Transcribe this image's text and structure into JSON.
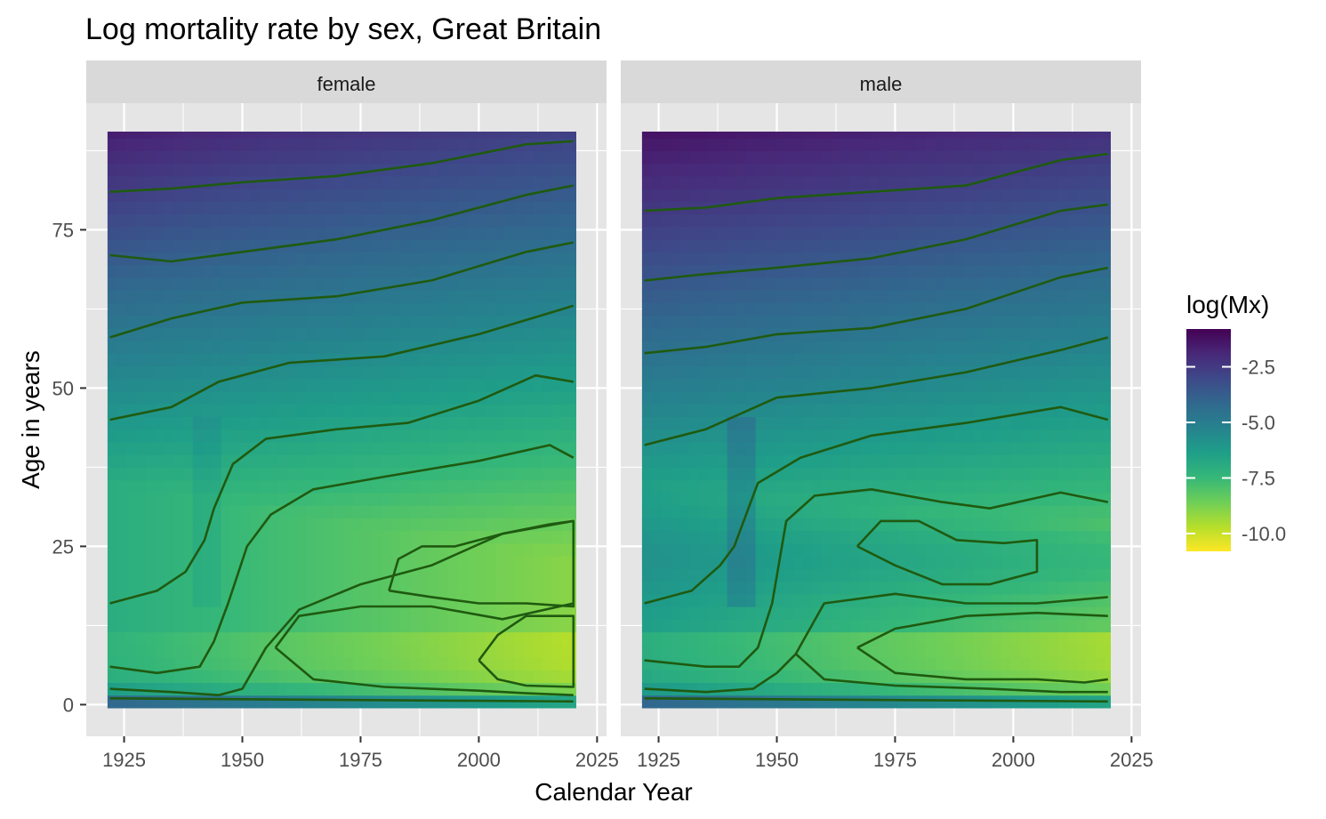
{
  "chart_data": {
    "type": "heatmap",
    "title": "Log mortality rate by sex, Great Britain",
    "xlabel": "Calendar Year",
    "ylabel": "Age in years",
    "xlim": [
      1917,
      2027
    ],
    "ylim": [
      -5,
      95
    ],
    "data_x_range": [
      1922,
      2020
    ],
    "data_y_range": [
      0,
      90
    ],
    "x_ticks": [
      1925,
      1950,
      1975,
      2000,
      2025
    ],
    "y_ticks": [
      0,
      25,
      50,
      75
    ],
    "panel_bg": "#e5e5e5",
    "strip_bg": "#d9d9d9",
    "contour_color": "#1f5a10",
    "legend": {
      "title": "log(Mx)",
      "range": [
        -10.8,
        -0.8
      ],
      "ticks": [
        -2.5,
        -5.0,
        -7.5,
        -10.0
      ],
      "tick_labels": [
        "-2.5",
        "-5.0",
        "-7.5",
        "-10.0"
      ],
      "palette": [
        "#fde725",
        "#b5de2b",
        "#6ece58",
        "#35b779",
        "#1f9e89",
        "#26828e",
        "#31688e",
        "#3e4989",
        "#482878",
        "#440154"
      ]
    },
    "panels": [
      {
        "label": "female",
        "contours": [
          {
            "level": "c1",
            "points": [
              [
                1922,
                81
              ],
              [
                1935,
                81.5
              ],
              [
                1950,
                82.5
              ],
              [
                1970,
                83.5
              ],
              [
                1990,
                85.5
              ],
              [
                2010,
                88.5
              ],
              [
                2020,
                89
              ]
            ]
          },
          {
            "level": "c2",
            "points": [
              [
                1922,
                71
              ],
              [
                1935,
                70
              ],
              [
                1950,
                71.5
              ],
              [
                1970,
                73.5
              ],
              [
                1990,
                76.5
              ],
              [
                2010,
                80.5
              ],
              [
                2020,
                82
              ]
            ]
          },
          {
            "level": "c3",
            "points": [
              [
                1922,
                58
              ],
              [
                1935,
                61
              ],
              [
                1950,
                63.5
              ],
              [
                1970,
                64.5
              ],
              [
                1990,
                67
              ],
              [
                2010,
                71.5
              ],
              [
                2020,
                73
              ]
            ]
          },
          {
            "level": "c4",
            "points": [
              [
                1922,
                45
              ],
              [
                1935,
                47
              ],
              [
                1945,
                51
              ],
              [
                1960,
                54
              ],
              [
                1980,
                55
              ],
              [
                2000,
                58.5
              ],
              [
                2020,
                63
              ]
            ]
          },
          {
            "level": "c5",
            "points": [
              [
                1922,
                16
              ],
              [
                1932,
                18
              ],
              [
                1938,
                21
              ],
              [
                1942,
                26
              ],
              [
                1944,
                31
              ],
              [
                1948,
                38
              ],
              [
                1955,
                42
              ],
              [
                1970,
                43.5
              ],
              [
                1985,
                44.5
              ],
              [
                2000,
                48
              ],
              [
                2012,
                52
              ],
              [
                2020,
                51
              ]
            ]
          },
          {
            "level": "c6",
            "points": [
              [
                1922,
                6
              ],
              [
                1932,
                5
              ],
              [
                1941,
                6
              ],
              [
                1944,
                10
              ],
              [
                1947,
                16
              ],
              [
                1951,
                25
              ],
              [
                1956,
                30
              ],
              [
                1965,
                34
              ],
              [
                1980,
                36
              ],
              [
                2000,
                38.5
              ],
              [
                2015,
                41
              ],
              [
                2020,
                39
              ]
            ]
          },
          {
            "level": "c7",
            "points": [
              [
                1922,
                2.5
              ],
              [
                1935,
                2
              ],
              [
                1945,
                1.5
              ],
              [
                1950,
                2.5
              ],
              [
                1955,
                9
              ],
              [
                1962,
                15
              ],
              [
                1975,
                19
              ],
              [
                1990,
                22
              ],
              [
                2005,
                27
              ],
              [
                2020,
                29
              ]
            ]
          },
          {
            "level": "c8",
            "points": [
              [
                1922,
                1
              ],
              [
                1960,
                0.8
              ],
              [
                2000,
                0.6
              ],
              [
                2020,
                0.5
              ]
            ]
          },
          {
            "level": "c9",
            "points": [
              [
                1957,
                9
              ],
              [
                1965,
                4
              ],
              [
                1980,
                2.8
              ],
              [
                2000,
                2.2
              ],
              [
                2010,
                1.8
              ],
              [
                2020,
                1.5
              ]
            ]
          },
          {
            "level": "c10",
            "points": [
              [
                1957,
                9
              ],
              [
                1962,
                14
              ],
              [
                1975,
                15.5
              ],
              [
                1990,
                15.5
              ],
              [
                2005,
                13.5
              ],
              [
                2020,
                16
              ]
            ]
          },
          {
            "level": "c11",
            "points": [
              [
                2000,
                7
              ],
              [
                2004,
                4
              ],
              [
                2010,
                3
              ],
              [
                2020,
                2.8
              ],
              [
                2020,
                14
              ],
              [
                2010,
                14
              ],
              [
                2004,
                11
              ],
              [
                2000,
                7
              ]
            ]
          },
          {
            "level": "c12",
            "points": [
              [
                1981,
                18
              ],
              [
                1983,
                23
              ],
              [
                1988,
                25
              ],
              [
                1995,
                25
              ],
              [
                2005,
                27
              ],
              [
                2015,
                28.5
              ],
              [
                2020,
                29
              ],
              [
                2020,
                15.5
              ],
              [
                2010,
                16
              ],
              [
                2000,
                16
              ],
              [
                1990,
                17
              ],
              [
                1981,
                18
              ]
            ]
          }
        ]
      },
      {
        "label": "male",
        "contours": [
          {
            "level": "c1",
            "points": [
              [
                1922,
                78
              ],
              [
                1935,
                78.5
              ],
              [
                1950,
                80
              ],
              [
                1970,
                81
              ],
              [
                1990,
                82
              ],
              [
                2010,
                86
              ],
              [
                2020,
                87
              ]
            ]
          },
          {
            "level": "c2",
            "points": [
              [
                1922,
                67
              ],
              [
                1935,
                68
              ],
              [
                1950,
                69
              ],
              [
                1970,
                70.5
              ],
              [
                1990,
                73.5
              ],
              [
                2010,
                78
              ],
              [
                2020,
                79
              ]
            ]
          },
          {
            "level": "c3",
            "points": [
              [
                1922,
                55.5
              ],
              [
                1935,
                56.5
              ],
              [
                1950,
                58.5
              ],
              [
                1970,
                59.5
              ],
              [
                1990,
                62.5
              ],
              [
                2010,
                67.5
              ],
              [
                2020,
                69
              ]
            ]
          },
          {
            "level": "c4",
            "points": [
              [
                1922,
                41
              ],
              [
                1935,
                43.5
              ],
              [
                1950,
                48.5
              ],
              [
                1970,
                50
              ],
              [
                1990,
                52.5
              ],
              [
                2010,
                56
              ],
              [
                2020,
                58
              ]
            ]
          },
          {
            "level": "c5",
            "points": [
              [
                1922,
                16
              ],
              [
                1932,
                18
              ],
              [
                1938,
                22
              ],
              [
                1941,
                25
              ],
              [
                1946,
                35
              ],
              [
                1955,
                39
              ],
              [
                1970,
                42.5
              ],
              [
                1990,
                44.5
              ],
              [
                2010,
                47
              ],
              [
                2020,
                45
              ]
            ]
          },
          {
            "level": "c6",
            "points": [
              [
                1922,
                7
              ],
              [
                1935,
                6
              ],
              [
                1942,
                6
              ],
              [
                1946,
                9
              ],
              [
                1949,
                16
              ],
              [
                1952,
                29
              ],
              [
                1958,
                33
              ],
              [
                1970,
                34
              ],
              [
                1985,
                32
              ],
              [
                1995,
                31
              ],
              [
                2010,
                33.5
              ],
              [
                2020,
                32
              ]
            ]
          },
          {
            "level": "c7",
            "points": [
              [
                1922,
                2.5
              ],
              [
                1935,
                2
              ],
              [
                1945,
                2.5
              ],
              [
                1950,
                5
              ],
              [
                1954,
                8
              ],
              [
                1960,
                16
              ],
              [
                1975,
                17.5
              ],
              [
                1990,
                16
              ],
              [
                2005,
                16
              ],
              [
                2020,
                17
              ]
            ]
          },
          {
            "level": "c8",
            "points": [
              [
                1922,
                1
              ],
              [
                1960,
                0.8
              ],
              [
                2000,
                0.6
              ],
              [
                2020,
                0.5
              ]
            ]
          },
          {
            "level": "c9",
            "points": [
              [
                1954,
                8
              ],
              [
                1960,
                4
              ],
              [
                1975,
                3
              ],
              [
                1995,
                2.5
              ],
              [
                2010,
                2
              ],
              [
                2020,
                2
              ]
            ]
          },
          {
            "level": "c10",
            "points": [
              [
                1967,
                9
              ],
              [
                1975,
                12
              ],
              [
                1990,
                14
              ],
              [
                2005,
                14.5
              ],
              [
                2020,
                14
              ]
            ]
          },
          {
            "level": "c11",
            "points": [
              [
                1967,
                9
              ],
              [
                1975,
                5
              ],
              [
                1990,
                4
              ],
              [
                2005,
                4
              ],
              [
                2015,
                3.5
              ],
              [
                2020,
                4
              ]
            ]
          },
          {
            "level": "c12",
            "points": [
              [
                1967,
                25
              ],
              [
                1972,
                29
              ],
              [
                1980,
                29
              ],
              [
                1988,
                26
              ],
              [
                1998,
                25.5
              ],
              [
                2005,
                26
              ],
              [
                2005,
                21
              ],
              [
                1995,
                19
              ],
              [
                1985,
                19
              ],
              [
                1975,
                22
              ],
              [
                1967,
                25
              ]
            ]
          }
        ]
      }
    ]
  }
}
